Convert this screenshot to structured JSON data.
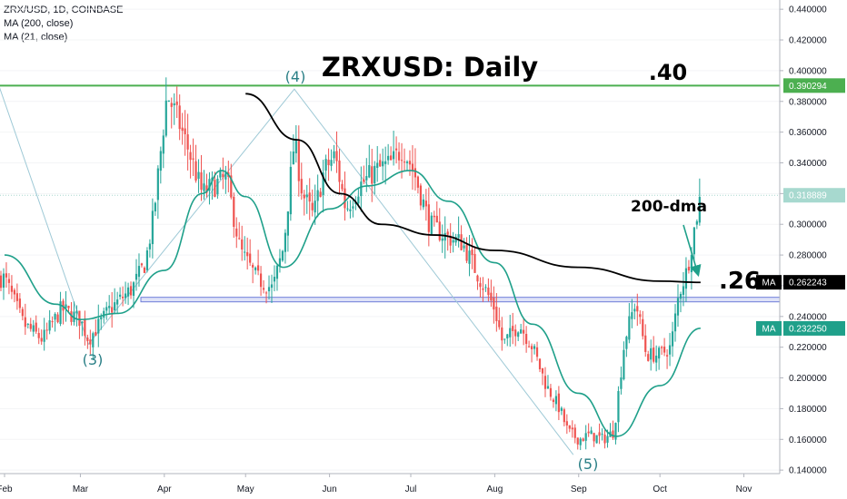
{
  "header": {
    "symbol_line": "ZRX/USD, 1D, COINBASE",
    "ma200_line": "MA (200, close)",
    "ma21_line": "MA (21, close)"
  },
  "annotations": {
    "title": "ZRXUSD: Daily",
    "level_40": ".40",
    "level_26": ".26",
    "dma_label": "200-dma",
    "wave_3": "(3)",
    "wave_4": "(4)",
    "wave_5": "(5)"
  },
  "price_tags": {
    "resistance": "0.390294",
    "last": "0.318889",
    "ma200_badge": "MA",
    "ma200": "0.262243",
    "ma21_badge": "MA",
    "ma21": "0.232250"
  },
  "colors": {
    "up": "#26a69a",
    "down": "#ef5350",
    "ma21": "#1fa08a",
    "ma200": "#000000",
    "resistance": "#4caf50",
    "support": "#6d7cd8",
    "waves": "#9ec9d6"
  },
  "chart_data": {
    "type": "candlestick",
    "title": "ZRXUSD: Daily",
    "y_ticks": [
      "0.440000",
      "0.420000",
      "0.400000",
      "0.380000",
      "0.360000",
      "0.340000",
      "0.320000",
      "0.300000",
      "0.280000",
      "0.260000",
      "0.240000",
      "0.220000",
      "0.200000",
      "0.180000",
      "0.160000",
      "0.140000"
    ],
    "x_ticks": [
      "Feb",
      "Mar",
      "Apr",
      "May",
      "Jun",
      "Jul",
      "Aug",
      "Sep",
      "Oct",
      "Nov"
    ],
    "ylim": [
      0.133,
      0.446
    ],
    "resistance_level": 0.3903,
    "support_level": 0.251,
    "price_path": [
      [
        "2019-02-01",
        0.265
      ],
      [
        "2019-02-08",
        0.235
      ],
      [
        "2019-02-15",
        0.225
      ],
      [
        "2019-02-22",
        0.245
      ],
      [
        "2019-03-01",
        0.238
      ],
      [
        "2019-03-04",
        0.225
      ],
      [
        "2019-03-12",
        0.245
      ],
      [
        "2019-03-20",
        0.258
      ],
      [
        "2019-03-25",
        0.275
      ],
      [
        "2019-03-28",
        0.305
      ],
      [
        "2019-04-02",
        0.385
      ],
      [
        "2019-04-06",
        0.368
      ],
      [
        "2019-04-10",
        0.348
      ],
      [
        "2019-04-15",
        0.32
      ],
      [
        "2019-04-19",
        0.325
      ],
      [
        "2019-04-24",
        0.33
      ],
      [
        "2019-04-29",
        0.283
      ],
      [
        "2019-05-05",
        0.265
      ],
      [
        "2019-05-11",
        0.258
      ],
      [
        "2019-05-15",
        0.285
      ],
      [
        "2019-05-19",
        0.355
      ],
      [
        "2019-05-22",
        0.32
      ],
      [
        "2019-05-26",
        0.305
      ],
      [
        "2019-05-30",
        0.335
      ],
      [
        "2019-06-03",
        0.345
      ],
      [
        "2019-06-07",
        0.31
      ],
      [
        "2019-06-12",
        0.325
      ],
      [
        "2019-06-18",
        0.335
      ],
      [
        "2019-06-24",
        0.34
      ],
      [
        "2019-06-28",
        0.35
      ],
      [
        "2019-07-02",
        0.335
      ],
      [
        "2019-07-08",
        0.3
      ],
      [
        "2019-07-14",
        0.292
      ],
      [
        "2019-07-20",
        0.288
      ],
      [
        "2019-07-25",
        0.27
      ],
      [
        "2019-08-01",
        0.245
      ],
      [
        "2019-08-04",
        0.222
      ],
      [
        "2019-08-10",
        0.235
      ],
      [
        "2019-08-15",
        0.22
      ],
      [
        "2019-08-20",
        0.195
      ],
      [
        "2019-08-25",
        0.18
      ],
      [
        "2019-08-28",
        0.165
      ],
      [
        "2019-09-01",
        0.16
      ],
      [
        "2019-09-05",
        0.163
      ],
      [
        "2019-09-10",
        0.16
      ],
      [
        "2019-09-14",
        0.165
      ],
      [
        "2019-09-18",
        0.225
      ],
      [
        "2019-09-22",
        0.25
      ],
      [
        "2019-09-26",
        0.215
      ],
      [
        "2019-10-01",
        0.215
      ],
      [
        "2019-10-05",
        0.22
      ],
      [
        "2019-10-08",
        0.255
      ],
      [
        "2019-10-11",
        0.27
      ],
      [
        "2019-10-14",
        0.3
      ],
      [
        "2019-10-16",
        0.3189
      ]
    ],
    "ma21": [
      [
        "2019-02-01",
        0.28
      ],
      [
        "2019-02-20",
        0.248
      ],
      [
        "2019-03-01",
        0.238
      ],
      [
        "2019-03-15",
        0.242
      ],
      [
        "2019-04-01",
        0.27
      ],
      [
        "2019-04-15",
        0.32
      ],
      [
        "2019-04-22",
        0.335
      ],
      [
        "2019-05-01",
        0.318
      ],
      [
        "2019-05-15",
        0.272
      ],
      [
        "2019-06-01",
        0.31
      ],
      [
        "2019-06-15",
        0.325
      ],
      [
        "2019-07-01",
        0.335
      ],
      [
        "2019-07-15",
        0.315
      ],
      [
        "2019-08-01",
        0.275
      ],
      [
        "2019-08-15",
        0.235
      ],
      [
        "2019-09-01",
        0.19
      ],
      [
        "2019-09-15",
        0.162
      ],
      [
        "2019-10-01",
        0.195
      ],
      [
        "2019-10-16",
        0.2323
      ]
    ],
    "ma200": [
      [
        "2019-05-01",
        0.385
      ],
      [
        "2019-05-20",
        0.355
      ],
      [
        "2019-06-05",
        0.32
      ],
      [
        "2019-06-20",
        0.3
      ],
      [
        "2019-07-10",
        0.293
      ],
      [
        "2019-08-01",
        0.283
      ],
      [
        "2019-09-01",
        0.272
      ],
      [
        "2019-10-01",
        0.263
      ],
      [
        "2019-10-16",
        0.2622
      ]
    ]
  }
}
